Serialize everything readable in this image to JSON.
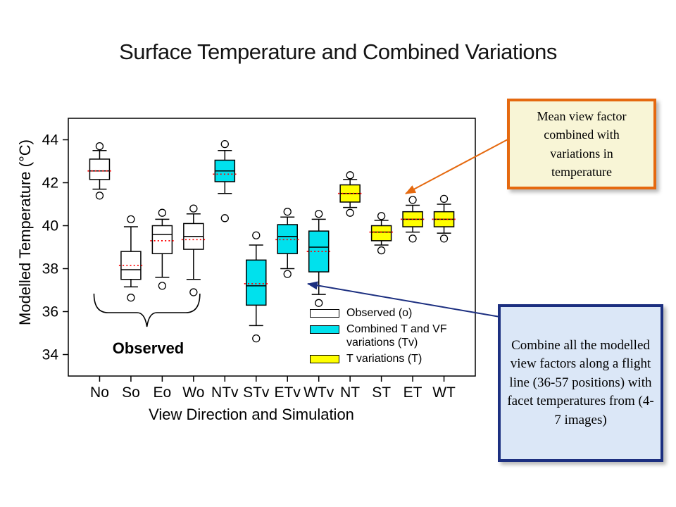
{
  "slide": {
    "title": "Surface Temperature and Combined Variations"
  },
  "chart_data": {
    "type": "boxplot",
    "title": "",
    "xlabel": "View Direction and Simulation",
    "ylabel": "Modelled Temperature (°C)",
    "ylim": [
      33,
      45
    ],
    "yticks": [
      34,
      36,
      38,
      40,
      42,
      44
    ],
    "grid": false,
    "categories": [
      "No",
      "So",
      "Eo",
      "Wo",
      "NTv",
      "STv",
      "ETv",
      "WTv",
      "NT",
      "ST",
      "ET",
      "WT"
    ],
    "boxes": [
      {
        "category": "No",
        "group": "observed",
        "outlier_high": 43.7,
        "whisker_high": 43.5,
        "q3": 43.1,
        "median": 42.55,
        "mean": 42.55,
        "q1": 42.15,
        "whisker_low": 41.7,
        "outlier_low": 41.4
      },
      {
        "category": "So",
        "group": "observed",
        "outlier_high": 40.3,
        "whisker_high": 39.95,
        "q3": 38.8,
        "median": 37.95,
        "mean": 38.15,
        "q1": 37.5,
        "whisker_low": 37.15,
        "outlier_low": 36.65
      },
      {
        "category": "Eo",
        "group": "observed",
        "outlier_high": 40.6,
        "whisker_high": 40.3,
        "q3": 40.0,
        "median": 39.6,
        "mean": 39.3,
        "q1": 38.7,
        "whisker_low": 37.6,
        "outlier_low": 37.2
      },
      {
        "category": "Wo",
        "group": "observed",
        "outlier_high": 40.8,
        "whisker_high": 40.55,
        "q3": 40.1,
        "median": 39.5,
        "mean": 39.35,
        "q1": 38.9,
        "whisker_low": 37.5,
        "outlier_low": 36.9
      },
      {
        "category": "NTv",
        "group": "combined_tv",
        "outlier_high": 43.8,
        "whisker_high": 43.5,
        "q3": 43.05,
        "median": 42.55,
        "mean": 42.4,
        "q1": 42.05,
        "whisker_low": 41.5,
        "outlier_low": 40.35
      },
      {
        "category": "STv",
        "group": "combined_tv",
        "outlier_high": 39.55,
        "whisker_high": 39.1,
        "q3": 38.4,
        "median": 37.2,
        "mean": 37.3,
        "q1": 36.3,
        "whisker_low": 35.35,
        "outlier_low": 34.75
      },
      {
        "category": "ETv",
        "group": "combined_tv",
        "outlier_high": 40.65,
        "whisker_high": 40.4,
        "q3": 40.05,
        "median": 39.5,
        "mean": 39.35,
        "q1": 38.7,
        "whisker_low": 38.0,
        "outlier_low": 37.75
      },
      {
        "category": "WTv",
        "group": "combined_tv",
        "outlier_high": 40.55,
        "whisker_high": 40.3,
        "q3": 39.75,
        "median": 39.0,
        "mean": 38.8,
        "q1": 37.85,
        "whisker_low": 36.8,
        "outlier_low": 36.4
      },
      {
        "category": "NT",
        "group": "t_variations",
        "outlier_high": 42.35,
        "whisker_high": 42.15,
        "q3": 41.9,
        "median": 41.5,
        "mean": 41.5,
        "q1": 41.1,
        "whisker_low": 40.85,
        "outlier_low": 40.6
      },
      {
        "category": "ST",
        "group": "t_variations",
        "outlier_high": 40.45,
        "whisker_high": 40.25,
        "q3": 40.0,
        "median": 39.7,
        "mean": 39.7,
        "q1": 39.3,
        "whisker_low": 39.1,
        "outlier_low": 38.85
      },
      {
        "category": "ET",
        "group": "t_variations",
        "outlier_high": 41.2,
        "whisker_high": 40.95,
        "q3": 40.65,
        "median": 40.3,
        "mean": 40.3,
        "q1": 39.95,
        "whisker_low": 39.7,
        "outlier_low": 39.4
      },
      {
        "category": "WT",
        "group": "t_variations",
        "outlier_high": 41.25,
        "whisker_high": 41.0,
        "q3": 40.65,
        "median": 40.3,
        "mean": 40.3,
        "q1": 39.95,
        "whisker_low": 39.65,
        "outlier_low": 39.4
      }
    ],
    "colors": {
      "observed": "#FFFFFF",
      "combined_tv": "#00E1ED",
      "t_variations": "#FFFF00",
      "mean_line": "#FF0000",
      "box_stroke": "#000000"
    },
    "legend": [
      {
        "group": "observed",
        "label": "Observed (o)"
      },
      {
        "group": "combined_tv",
        "label": "Combined T and VF variations (Tv)"
      },
      {
        "group": "t_variations",
        "label": "T variations (T)"
      }
    ],
    "legend_position": "inside-lower-right",
    "brace_label": "Observed"
  },
  "callouts": {
    "mean_view_factor": {
      "text": "Mean view factor combined with variations in temperature",
      "border_color": "#E5690F",
      "fill_color": "#F8F5D6",
      "arrow_color": "#E5690F"
    },
    "combine_all": {
      "text": "Combine all the modelled view factors along a flight line (36-57 positions) with facet temperatures from (4-7 images)",
      "border_color": "#1C2F80",
      "fill_color": "#DBE7F7",
      "arrow_color": "#1C2F80"
    }
  }
}
